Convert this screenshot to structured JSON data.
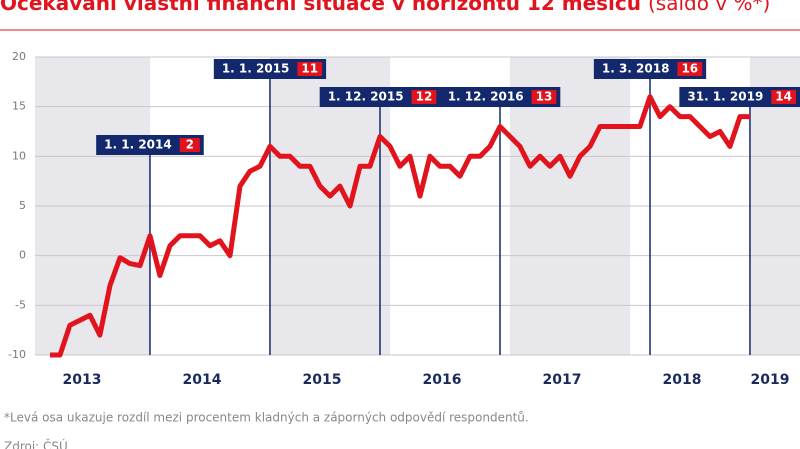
{
  "chart_data": {
    "type": "line",
    "title": "Očekávání vlastní finanční situace v horizontu 12 měsíců",
    "subtitle": "(saldo v %*)",
    "note": "*Levá osa ukazuje rozdíl mezi procentem kladných a záporných odpovědí respondentů.",
    "source": "Zdroj: ČSÚ",
    "x": [
      2013.167,
      2013.25,
      2013.333,
      2013.417,
      2013.5,
      2013.583,
      2013.667,
      2013.75,
      2013.833,
      2013.917,
      2014,
      2014.083,
      2014.167,
      2014.25,
      2014.333,
      2014.417,
      2014.5,
      2014.583,
      2014.667,
      2014.75,
      2014.833,
      2014.917,
      2015,
      2015.083,
      2015.167,
      2015.25,
      2015.333,
      2015.417,
      2015.5,
      2015.583,
      2015.667,
      2015.75,
      2015.833,
      2015.917,
      2016,
      2016.083,
      2016.167,
      2016.25,
      2016.333,
      2016.417,
      2016.5,
      2016.583,
      2016.667,
      2016.75,
      2016.833,
      2016.917,
      2017,
      2017.083,
      2017.167,
      2017.25,
      2017.333,
      2017.417,
      2017.5,
      2017.583,
      2017.667,
      2017.75,
      2017.833,
      2017.917,
      2018,
      2018.083,
      2018.167,
      2018.25,
      2018.333,
      2018.417,
      2018.5,
      2018.583,
      2018.667,
      2018.75,
      2018.833,
      2018.917,
      2019
    ],
    "series": [
      {
        "color": "#e1141e",
        "values": [
          -10,
          -10,
          -7,
          -6.5,
          -6,
          -8,
          -3,
          -0.2,
          -0.8,
          -1,
          2,
          -2,
          1,
          2,
          2,
          2,
          1,
          1.5,
          0,
          7,
          8.5,
          9,
          11,
          10,
          10,
          9,
          9,
          7,
          6,
          7,
          5,
          9,
          9,
          12,
          11,
          9,
          10,
          6,
          10,
          9,
          9,
          8,
          10,
          10,
          11,
          13,
          12,
          11,
          9,
          10,
          9,
          10,
          8,
          10,
          11,
          13,
          13,
          13,
          13,
          13,
          16,
          14,
          15,
          14,
          14,
          13,
          12,
          12.5,
          11,
          14,
          14
        ]
      }
    ],
    "annotations": [
      {
        "text": "1. 1. 2014",
        "x": 2014,
        "value": 2
      },
      {
        "text": "1. 1. 2015",
        "x": 2015,
        "value": 11
      },
      {
        "text": "1. 12. 2015",
        "x": 2015.917,
        "value": 12
      },
      {
        "text": "1. 12. 2016",
        "x": 2016.917,
        "value": 13
      },
      {
        "text": "1. 3. 2018",
        "x": 2018.167,
        "value": 16
      },
      {
        "text": "31. 1. 2019",
        "x": 2019,
        "value": 14
      }
    ],
    "xlim": [
      2013.042,
      2019.417
    ],
    "xticks": [
      2013,
      2014,
      2015,
      2016,
      2017,
      2018,
      2019
    ],
    "ylim": [
      -10,
      20
    ],
    "yticks": [
      -10,
      -5,
      0,
      5,
      10,
      15,
      20
    ],
    "grid": true
  }
}
